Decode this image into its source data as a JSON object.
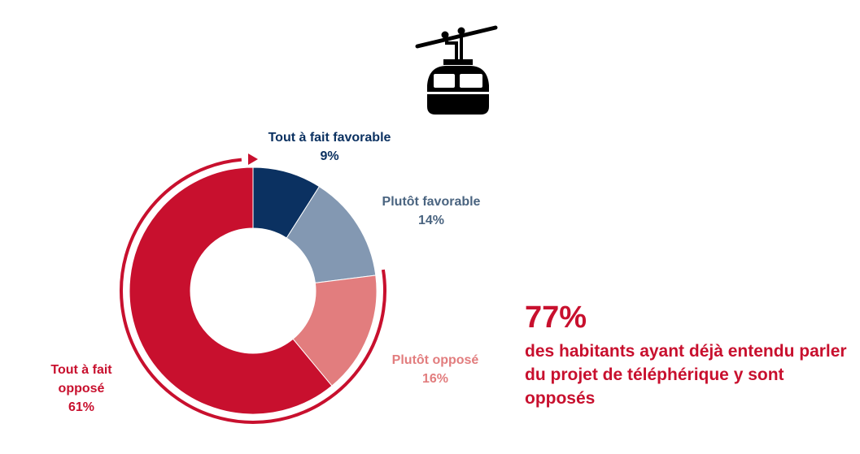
{
  "chart_data": {
    "type": "pie",
    "style": "donut",
    "slices": [
      {
        "label": "Tout à fait favorable",
        "value": 9,
        "value_label": "9%",
        "color": "#0b3161"
      },
      {
        "label": "Plutôt favorable",
        "value": 14,
        "value_label": "14%",
        "color": "#8398b2"
      },
      {
        "label": "Plutôt opposé",
        "value": 16,
        "value_label": "16%",
        "color": "#e27d7e"
      },
      {
        "label": "Tout à fait opposé",
        "value": 61,
        "value_label": "61%",
        "color": "#c8102e"
      }
    ]
  },
  "labels": {
    "tout_favorable": {
      "line1": "Tout à fait favorable",
      "value": "9%",
      "color": "#0b3161"
    },
    "plutot_favorable": {
      "line1": "Plutôt favorable",
      "value": "14%",
      "color": "#4a6480"
    },
    "plutot_oppose": {
      "line1": "Plutôt opposé",
      "value": "16%",
      "color": "#e27d7e"
    },
    "tout_oppose": {
      "line1": "Tout à fait",
      "line2": "opposé",
      "value": "61%",
      "color": "#c8102e"
    }
  },
  "summary": {
    "big": "77%",
    "text": "des habitants  ayant déjà entendu parler du projet de téléphérique y sont opposés"
  },
  "icon": "cable-car-icon",
  "accent_color": "#c8102e"
}
